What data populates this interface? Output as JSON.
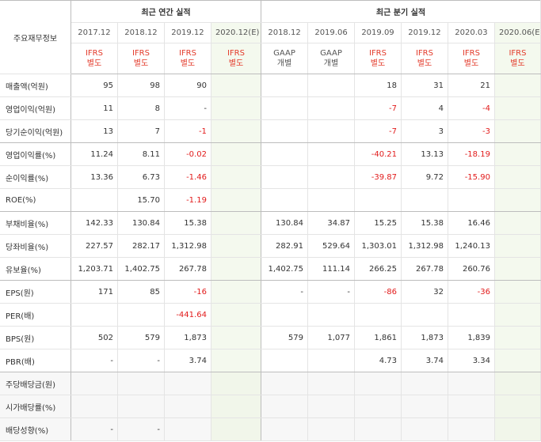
{
  "header": {
    "label_col": "주요재무정보",
    "annual_title": "최근 연간 실적",
    "quarter_title": "최근 분기 실적",
    "periods": [
      "2017.12",
      "2018.12",
      "2019.12",
      "2020.12(E)",
      "2018.12",
      "2019.06",
      "2019.09",
      "2019.12",
      "2020.03",
      "2020.06(E)"
    ],
    "acc_top": [
      "IFRS",
      "IFRS",
      "IFRS",
      "IFRS",
      "GAAP",
      "GAAP",
      "IFRS",
      "IFRS",
      "IFRS",
      "IFRS"
    ],
    "acc_bottom": [
      "별도",
      "별도",
      "별도",
      "별도",
      "개별",
      "개별",
      "별도",
      "별도",
      "별도",
      "별도"
    ]
  },
  "rows": [
    {
      "label": "매출액(억원)",
      "cells": [
        "95",
        "98",
        "90",
        "",
        "",
        "",
        "18",
        "31",
        "21",
        ""
      ]
    },
    {
      "label": "영업이익(억원)",
      "cells": [
        "11",
        "8",
        "-",
        "",
        "",
        "",
        "-7",
        "4",
        "-4",
        ""
      ]
    },
    {
      "label": "당기순이익(억원)",
      "cells": [
        "13",
        "7",
        "-1",
        "",
        "",
        "",
        "-7",
        "3",
        "-3",
        ""
      ]
    },
    {
      "label": "영업이익률(%)",
      "cells": [
        "11.24",
        "8.11",
        "-0.02",
        "",
        "",
        "",
        "-40.21",
        "13.13",
        "-18.19",
        ""
      ]
    },
    {
      "label": "순이익률(%)",
      "cells": [
        "13.36",
        "6.73",
        "-1.46",
        "",
        "",
        "",
        "-39.87",
        "9.72",
        "-15.90",
        ""
      ]
    },
    {
      "label": "ROE(%)",
      "cells": [
        "",
        "15.70",
        "-1.19",
        "",
        "",
        "",
        "",
        "",
        "",
        ""
      ]
    },
    {
      "label": "부채비율(%)",
      "cells": [
        "142.33",
        "130.84",
        "15.38",
        "",
        "130.84",
        "34.87",
        "15.25",
        "15.38",
        "16.46",
        ""
      ]
    },
    {
      "label": "당좌비율(%)",
      "cells": [
        "227.57",
        "282.17",
        "1,312.98",
        "",
        "282.91",
        "529.64",
        "1,303.01",
        "1,312.98",
        "1,240.13",
        ""
      ]
    },
    {
      "label": "유보율(%)",
      "cells": [
        "1,203.71",
        "1,402.75",
        "267.78",
        "",
        "1,402.75",
        "111.14",
        "266.25",
        "267.78",
        "260.76",
        ""
      ]
    },
    {
      "label": "EPS(원)",
      "cells": [
        "171",
        "85",
        "-16",
        "",
        "-",
        "-",
        "-86",
        "32",
        "-36",
        ""
      ]
    },
    {
      "label": "PER(배)",
      "cells": [
        "",
        "",
        "-441.64",
        "",
        "",
        "",
        "",
        "",
        "",
        ""
      ]
    },
    {
      "label": "BPS(원)",
      "cells": [
        "502",
        "579",
        "1,873",
        "",
        "579",
        "1,077",
        "1,861",
        "1,873",
        "1,839",
        ""
      ]
    },
    {
      "label": "PBR(배)",
      "cells": [
        "-",
        "-",
        "3.74",
        "",
        "",
        "",
        "4.73",
        "3.74",
        "3.34",
        ""
      ]
    },
    {
      "label": "주당배당금(원)",
      "cells": [
        "",
        "",
        "",
        "",
        "",
        "",
        "",
        "",
        "",
        ""
      ]
    },
    {
      "label": "시가배당률(%)",
      "cells": [
        "",
        "",
        "",
        "",
        "",
        "",
        "",
        "",
        "",
        ""
      ]
    },
    {
      "label": "배당성향(%)",
      "cells": [
        "-",
        "-",
        "",
        "",
        "",
        "",
        "",
        "",
        "",
        ""
      ]
    }
  ],
  "colors": {
    "negative": "#e21b1b",
    "ifrs": "#e33b2b",
    "estimate_bg": "#f4f9ee"
  }
}
